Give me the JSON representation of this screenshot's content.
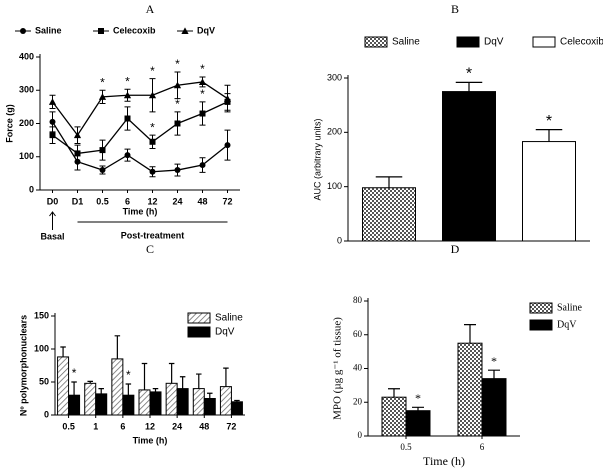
{
  "chart_data": [
    {
      "type": "line",
      "title": "A",
      "categories": [
        "D0",
        "D1",
        "0.5",
        "6",
        "12",
        "24",
        "48",
        "72"
      ],
      "xlabel": "Time (h)",
      "ylabel": "Force (g)",
      "ylim": [
        0,
        400
      ],
      "yticks": [
        0,
        100,
        200,
        300,
        400
      ],
      "annotations": [
        "Basal",
        "Post-treatment"
      ],
      "series": [
        {
          "name": "Saline",
          "marker": "circle",
          "color": "#000000",
          "values": [
            205,
            85,
            60,
            105,
            55,
            60,
            75,
            135
          ],
          "errors": [
            30,
            25,
            12,
            18,
            15,
            18,
            22,
            45
          ],
          "significance": [
            null,
            null,
            null,
            null,
            null,
            null,
            null,
            null
          ]
        },
        {
          "name": "Celecoxib",
          "marker": "square",
          "color": "#000000",
          "values": [
            165,
            110,
            120,
            215,
            145,
            200,
            230,
            265
          ],
          "errors": [
            25,
            25,
            30,
            35,
            20,
            35,
            35,
            25
          ],
          "significance": [
            null,
            null,
            null,
            null,
            "*",
            "*",
            "*",
            null
          ]
        },
        {
          "name": "DqV",
          "marker": "triangle",
          "color": "#000000",
          "values": [
            265,
            165,
            280,
            285,
            285,
            315,
            325,
            275
          ],
          "errors": [
            20,
            25,
            20,
            18,
            50,
            40,
            15,
            40
          ],
          "significance": [
            null,
            null,
            "*",
            "*",
            "*",
            "*",
            "*",
            null
          ]
        }
      ]
    },
    {
      "type": "bar",
      "title": "B",
      "ylabel": "AUC (arbitrary units)",
      "ylim": [
        0,
        300
      ],
      "yticks": [
        0,
        100,
        200,
        300
      ],
      "series": [
        {
          "name": "Saline",
          "pattern": "checker",
          "color": "#ffffff",
          "values": [
            98
          ],
          "errors": [
            20
          ],
          "significance": [
            null
          ]
        },
        {
          "name": "DqV",
          "pattern": "solid",
          "color": "#000000",
          "values": [
            275
          ],
          "errors": [
            17
          ],
          "significance": [
            "*"
          ]
        },
        {
          "name": "Celecoxib",
          "pattern": "solid",
          "color": "#ffffff",
          "values": [
            183
          ],
          "errors": [
            22
          ],
          "significance": [
            "*"
          ]
        }
      ]
    },
    {
      "type": "bar",
      "title": "C",
      "categories": [
        "0.5",
        "1",
        "6",
        "12",
        "24",
        "48",
        "72"
      ],
      "xlabel": "Time (h)",
      "ylabel": "Nº polymorphonuclears",
      "ylim": [
        0,
        150
      ],
      "yticks": [
        0,
        50,
        100,
        150
      ],
      "series": [
        {
          "name": "Saline",
          "pattern": "hatch",
          "color": "#ffffff",
          "values": [
            88,
            48,
            85,
            38,
            48,
            40,
            43
          ],
          "errors": [
            15,
            3,
            35,
            40,
            30,
            22,
            28
          ],
          "significance": [
            null,
            null,
            null,
            null,
            null,
            null,
            null
          ]
        },
        {
          "name": "DqV",
          "pattern": "solid",
          "color": "#000000",
          "values": [
            30,
            32,
            30,
            35,
            40,
            25,
            20
          ],
          "errors": [
            20,
            8,
            17,
            5,
            18,
            8,
            2
          ],
          "significance": [
            "*",
            null,
            "*",
            null,
            null,
            null,
            null
          ]
        }
      ]
    },
    {
      "type": "bar",
      "title": "D",
      "categories": [
        "0.5",
        "6"
      ],
      "xlabel": "Time (h)",
      "ylabel": "MPO (µg g⁻¹ of tissue)",
      "ylim": [
        0,
        80
      ],
      "yticks": [
        0,
        20,
        40,
        60,
        80
      ],
      "series": [
        {
          "name": "Saline",
          "pattern": "checker",
          "color": "#ffffff",
          "values": [
            23,
            55
          ],
          "errors": [
            5,
            11
          ],
          "significance": [
            null,
            null
          ]
        },
        {
          "name": "DqV",
          "pattern": "solid",
          "color": "#000000",
          "values": [
            15,
            34
          ],
          "errors": [
            2,
            5
          ],
          "significance": [
            "*",
            "*"
          ]
        }
      ]
    }
  ]
}
